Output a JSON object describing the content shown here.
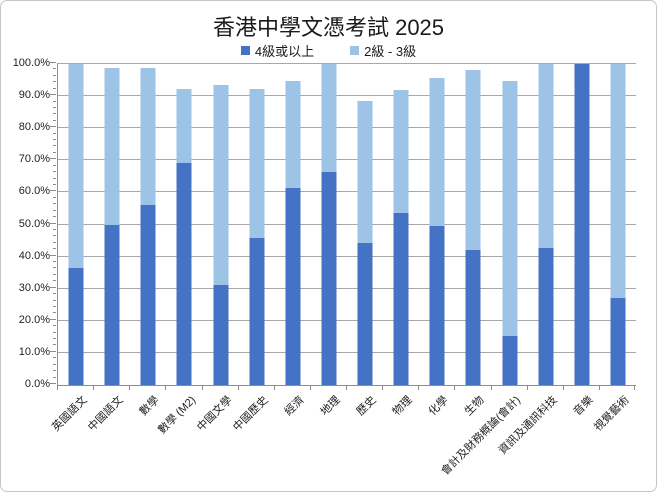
{
  "chart_data": {
    "type": "bar",
    "stacked": true,
    "title": "香港中學文憑考試 2025",
    "categories": [
      "英國語文",
      "中國語文",
      "數學",
      "數學 (M2)",
      "中國文學",
      "中國歷史",
      "經濟",
      "地理",
      "歷史",
      "物理",
      "化學",
      "生物",
      "會計及財務概論(會計)",
      "資訊及通訊科技",
      "音樂",
      "視覺藝術"
    ],
    "series": [
      {
        "name": "4級或以上",
        "color": "#4472C4",
        "values": [
          36.4,
          50.0,
          56.1,
          69.1,
          31.1,
          45.7,
          61.4,
          66.3,
          44.1,
          53.7,
          49.6,
          42.1,
          15.4,
          42.6,
          100.0,
          27.0
        ]
      },
      {
        "name": "2級 - 3級",
        "color": "#9DC3E6",
        "values": [
          63.6,
          48.9,
          42.8,
          23.0,
          62.3,
          46.4,
          33.3,
          33.7,
          44.5,
          38.3,
          45.9,
          55.9,
          79.2,
          57.4,
          0.0,
          73.0
        ]
      }
    ],
    "ylim": [
      0,
      100
    ],
    "ytick_step": 10,
    "ytick_labels": [
      "0.0%",
      "10.0%",
      "20.0%",
      "30.0%",
      "40.0%",
      "50.0%",
      "60.0%",
      "70.0%",
      "80.0%",
      "90.0%",
      "100.0%"
    ],
    "grid": "horizontal-major",
    "legend_position": "top"
  },
  "colors": {
    "series1": "#4472C4",
    "series2": "#9DC3E6",
    "gridline": "#A8A8A8",
    "axis": "#8E8E8E",
    "frame_border": "#C6C6C6",
    "text": "#1F1F1F"
  }
}
